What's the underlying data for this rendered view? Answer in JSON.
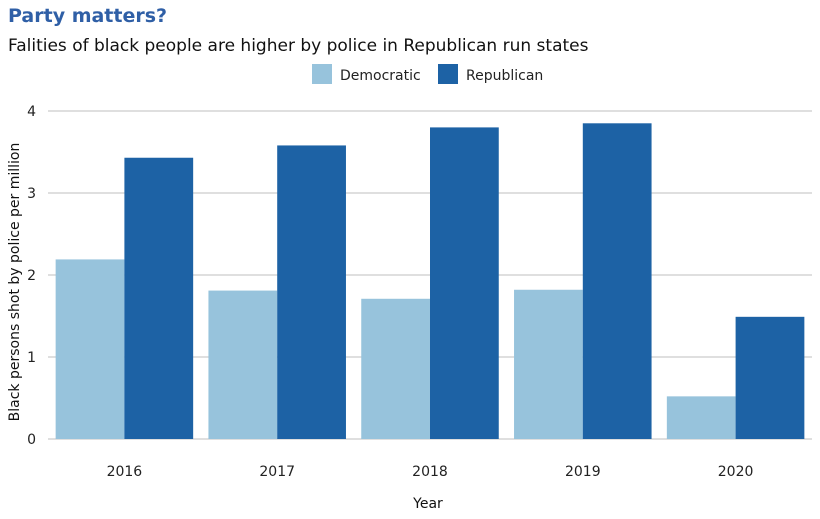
{
  "chart_data": {
    "type": "bar",
    "title": "Party matters?",
    "subtitle": "Falities of black people are higher by police in Republican run states",
    "xlabel": "Year",
    "ylabel": "Black persons shot by police per million",
    "categories": [
      "2016",
      "2017",
      "2018",
      "2019",
      "2020"
    ],
    "series": [
      {
        "name": "Democratic",
        "values": [
          2.19,
          1.81,
          1.71,
          1.82,
          0.52
        ],
        "color": "#97c3dc"
      },
      {
        "name": "Republican",
        "values": [
          3.43,
          3.58,
          3.8,
          3.85,
          1.49
        ],
        "color": "#1d62a5"
      }
    ],
    "ylim": [
      0,
      4
    ],
    "yticks": [
      0,
      1,
      2,
      3,
      4
    ],
    "grid": "horizontal",
    "legend_position": "top-center",
    "gridline_color": "#bfbfbf"
  }
}
